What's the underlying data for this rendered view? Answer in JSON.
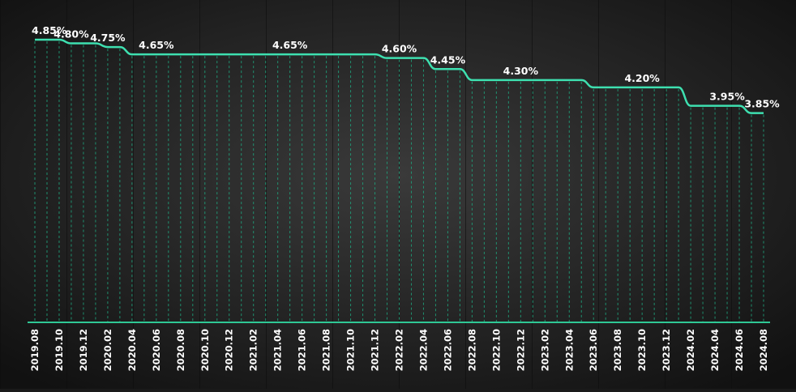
{
  "chart_data": {
    "type": "line",
    "title": "",
    "xlabel": "",
    "ylabel": "",
    "x_tick_labels": [
      "2019.08",
      "2019.10",
      "2019.12",
      "2020.02",
      "2020.04",
      "2020.06",
      "2020.08",
      "2020.10",
      "2020.12",
      "2021.02",
      "2021.04",
      "2021.06",
      "2021.08",
      "2021.10",
      "2021.12",
      "2022.02",
      "2022.04",
      "2022.06",
      "2022.08",
      "2022.10",
      "2022.12",
      "2023.02",
      "2023.04",
      "2023.06",
      "2023.08",
      "2023.10",
      "2023.12",
      "2024.02",
      "2024.04",
      "2024.06",
      "2024.08"
    ],
    "series": [
      {
        "color": "#3ee0b0",
        "x": [
          "2019.08",
          "2019.09",
          "2019.10",
          "2019.11",
          "2019.12",
          "2020.01",
          "2020.02",
          "2020.03",
          "2020.04",
          "2020.05",
          "2020.06",
          "2020.07",
          "2020.08",
          "2020.09",
          "2020.10",
          "2020.11",
          "2020.12",
          "2021.01",
          "2021.02",
          "2021.03",
          "2021.04",
          "2021.05",
          "2021.06",
          "2021.07",
          "2021.08",
          "2021.09",
          "2021.10",
          "2021.11",
          "2021.12",
          "2022.01",
          "2022.02",
          "2022.03",
          "2022.04",
          "2022.05",
          "2022.06",
          "2022.07",
          "2022.08",
          "2022.09",
          "2022.10",
          "2022.11",
          "2022.12",
          "2023.01",
          "2023.02",
          "2023.03",
          "2023.04",
          "2023.05",
          "2023.06",
          "2023.07",
          "2023.08",
          "2023.09",
          "2023.10",
          "2023.11",
          "2023.12",
          "2024.01",
          "2024.02",
          "2024.03",
          "2024.04",
          "2024.05",
          "2024.06",
          "2024.07",
          "2024.08"
        ],
        "values": [
          4.85,
          4.85,
          4.85,
          4.8,
          4.8,
          4.8,
          4.75,
          4.75,
          4.65,
          4.65,
          4.65,
          4.65,
          4.65,
          4.65,
          4.65,
          4.65,
          4.65,
          4.65,
          4.65,
          4.65,
          4.65,
          4.65,
          4.65,
          4.65,
          4.65,
          4.65,
          4.65,
          4.65,
          4.65,
          4.6,
          4.6,
          4.6,
          4.6,
          4.45,
          4.45,
          4.45,
          4.3,
          4.3,
          4.3,
          4.3,
          4.3,
          4.3,
          4.3,
          4.3,
          4.3,
          4.3,
          4.2,
          4.2,
          4.2,
          4.2,
          4.2,
          4.2,
          4.2,
          4.2,
          3.95,
          3.95,
          3.95,
          3.95,
          3.95,
          3.85,
          3.85
        ]
      }
    ],
    "annotations": [
      {
        "x": "2019.08",
        "text": "4.85%"
      },
      {
        "x": "2019.11",
        "text": "4.80%"
      },
      {
        "x": "2020.02",
        "text": "4.75%"
      },
      {
        "x": "2020.06",
        "text": "4.65%"
      },
      {
        "x": "2021.05",
        "text": "4.65%"
      },
      {
        "x": "2022.02",
        "text": "4.60%"
      },
      {
        "x": "2022.06",
        "text": "4.45%"
      },
      {
        "x": "2022.12",
        "text": "4.30%"
      },
      {
        "x": "2023.10",
        "text": "4.20%"
      },
      {
        "x": "2024.05",
        "text": "3.95%"
      },
      {
        "x": "2024.08",
        "text": "3.85%"
      }
    ],
    "ylim": [
      1.0,
      4.85
    ],
    "grid": "vertical dashed lines at each month",
    "legend": "none"
  },
  "colors": {
    "background": "#1a1a1a",
    "line": "#3ee0b0",
    "grid": "#1fa37c",
    "axis": "#2fc895",
    "text": "#ffffff"
  }
}
